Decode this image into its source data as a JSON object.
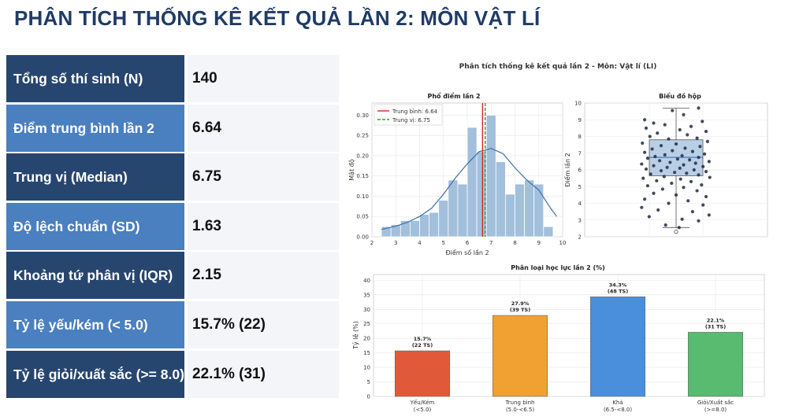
{
  "title": "PHÂN TÍCH THỐNG KÊ KẾT QUẢ LẦN 2: MÔN VẬT LÍ",
  "stats": [
    {
      "label": "Tổng số thí sinh (N)",
      "value": "140"
    },
    {
      "label": "Điểm trung bình lần 2",
      "value": "6.64"
    },
    {
      "label": "Trung vị (Median)",
      "value": "6.75"
    },
    {
      "label": "Độ lệch chuẩn (SD)",
      "value": "1.63"
    },
    {
      "label": "Khoảng tứ phân vị (IQR)",
      "value": "2.15"
    },
    {
      "label": "Tỷ lệ yếu/kém (< 5.0)",
      "value": "15.7% (22)"
    },
    {
      "label": "Tỷ lệ giỏi/xuất sắc (>= 8.0)",
      "value": "22.1% (31)"
    }
  ],
  "figure_title": "Phân tích thống kê kết quả lần 2 - Môn: Vật lí (LI)",
  "chart_data": [
    {
      "type": "bar",
      "title": "Phổ điểm lần 2",
      "xlabel": "Điểm số lần 2",
      "ylabel": "Mật độ",
      "bin_edges": [
        2.4,
        2.8,
        3.2,
        3.6,
        4.0,
        4.4,
        4.8,
        5.2,
        5.6,
        6.0,
        6.4,
        6.8,
        7.2,
        7.6,
        8.0,
        8.4,
        8.8,
        9.2,
        9.6
      ],
      "values": [
        0.025,
        0.03,
        0.04,
        0.04,
        0.055,
        0.06,
        0.09,
        0.14,
        0.13,
        0.27,
        0.21,
        0.3,
        0.185,
        0.105,
        0.13,
        0.14,
        0.13,
        0.025
      ],
      "kde": {
        "x": [
          2.4,
          3.0,
          3.5,
          4.0,
          4.5,
          5.0,
          5.5,
          6.0,
          6.5,
          7.0,
          7.5,
          8.0,
          8.5,
          9.0,
          9.5,
          9.75
        ],
        "y": [
          0.018,
          0.026,
          0.036,
          0.05,
          0.07,
          0.105,
          0.145,
          0.18,
          0.21,
          0.218,
          0.205,
          0.17,
          0.14,
          0.115,
          0.07,
          0.05
        ]
      },
      "mean": 6.64,
      "median": 6.75,
      "legend": [
        "Trung bình: 6.64",
        "Trung vị: 6.75"
      ],
      "xlim": [
        2,
        10
      ],
      "ylim": [
        0,
        0.33
      ],
      "xticks": [
        2,
        3,
        4,
        5,
        6,
        7,
        8,
        9,
        10
      ],
      "yticks": [
        "0.00",
        "0.05",
        "0.10",
        "0.15",
        "0.20",
        "0.25",
        "0.30"
      ],
      "colors": {
        "bar": "#a2bfdc",
        "kde": "#3a70ad",
        "mean": "#d62728",
        "median": "#2ca02c"
      }
    },
    {
      "type": "box",
      "title": "Biểu đồ hộp",
      "ylabel": "Điểm lần 2",
      "ylim": [
        2,
        10
      ],
      "yticks": [
        2,
        3,
        4,
        5,
        6,
        7,
        8,
        9,
        10
      ],
      "q1": 5.65,
      "median": 6.75,
      "q3": 7.8,
      "whisker_low": 2.55,
      "whisker_high": 9.7,
      "outliers": [
        2.3
      ],
      "points": [
        {
          "x": -0.42,
          "y": 9.0
        },
        {
          "x": 0.3,
          "y": 9.7
        },
        {
          "x": -0.05,
          "y": 9.55
        },
        {
          "x": 0.1,
          "y": 9.3
        },
        {
          "x": -0.3,
          "y": 8.8
        },
        {
          "x": 0.35,
          "y": 8.9
        },
        {
          "x": -0.15,
          "y": 8.7
        },
        {
          "x": 0.2,
          "y": 8.6
        },
        {
          "x": -0.4,
          "y": 8.5
        },
        {
          "x": 0.05,
          "y": 8.4
        },
        {
          "x": 0.4,
          "y": 8.3
        },
        {
          "x": -0.25,
          "y": 8.2
        },
        {
          "x": 0.15,
          "y": 8.1
        },
        {
          "x": -0.35,
          "y": 8.0
        },
        {
          "x": 0.28,
          "y": 7.9
        },
        {
          "x": -0.1,
          "y": 7.85
        },
        {
          "x": 0.42,
          "y": 7.7
        },
        {
          "x": -0.45,
          "y": 7.6
        },
        {
          "x": 0.0,
          "y": 7.55
        },
        {
          "x": -0.2,
          "y": 7.45
        },
        {
          "x": 0.32,
          "y": 7.4
        },
        {
          "x": 0.12,
          "y": 7.3
        },
        {
          "x": -0.32,
          "y": 7.25
        },
        {
          "x": -0.05,
          "y": 7.15
        },
        {
          "x": 0.22,
          "y": 7.1
        },
        {
          "x": -0.42,
          "y": 7.05
        },
        {
          "x": 0.38,
          "y": 6.95
        },
        {
          "x": -0.15,
          "y": 6.9
        },
        {
          "x": 0.08,
          "y": 6.85
        },
        {
          "x": -0.28,
          "y": 6.8
        },
        {
          "x": 0.3,
          "y": 6.75
        },
        {
          "x": -0.38,
          "y": 6.7
        },
        {
          "x": 0.02,
          "y": 6.65
        },
        {
          "x": 0.18,
          "y": 6.6
        },
        {
          "x": -0.22,
          "y": 6.55
        },
        {
          "x": 0.44,
          "y": 6.5
        },
        {
          "x": -0.08,
          "y": 6.45
        },
        {
          "x": 0.26,
          "y": 6.4
        },
        {
          "x": -0.46,
          "y": 6.35
        },
        {
          "x": 0.1,
          "y": 6.3
        },
        {
          "x": -0.3,
          "y": 6.25
        },
        {
          "x": 0.36,
          "y": 6.2
        },
        {
          "x": -0.12,
          "y": 6.15
        },
        {
          "x": 0.05,
          "y": 6.1
        },
        {
          "x": -0.4,
          "y": 6.05
        },
        {
          "x": 0.24,
          "y": 6.0
        },
        {
          "x": -0.2,
          "y": 5.95
        },
        {
          "x": 0.4,
          "y": 5.9
        },
        {
          "x": -0.02,
          "y": 5.85
        },
        {
          "x": 0.14,
          "y": 5.8
        },
        {
          "x": -0.34,
          "y": 5.75
        },
        {
          "x": 0.3,
          "y": 5.7
        },
        {
          "x": -0.16,
          "y": 5.6
        },
        {
          "x": 0.45,
          "y": 5.55
        },
        {
          "x": -0.44,
          "y": 5.5
        },
        {
          "x": 0.06,
          "y": 5.45
        },
        {
          "x": -0.26,
          "y": 5.35
        },
        {
          "x": 0.2,
          "y": 5.3
        },
        {
          "x": -0.06,
          "y": 5.2
        },
        {
          "x": 0.34,
          "y": 5.1
        },
        {
          "x": -0.38,
          "y": 5.05
        },
        {
          "x": 0.1,
          "y": 4.95
        },
        {
          "x": -0.18,
          "y": 4.85
        },
        {
          "x": 0.28,
          "y": 4.75
        },
        {
          "x": -0.3,
          "y": 4.6
        },
        {
          "x": 0.0,
          "y": 4.5
        },
        {
          "x": 0.4,
          "y": 4.4
        },
        {
          "x": -0.42,
          "y": 4.25
        },
        {
          "x": 0.16,
          "y": 4.15
        },
        {
          "x": -0.1,
          "y": 4.0
        },
        {
          "x": 0.36,
          "y": 3.9
        },
        {
          "x": -0.46,
          "y": 3.75
        },
        {
          "x": -0.24,
          "y": 3.6
        },
        {
          "x": 0.22,
          "y": 3.5
        },
        {
          "x": 0.44,
          "y": 3.3
        },
        {
          "x": -0.36,
          "y": 3.2
        },
        {
          "x": 0.08,
          "y": 3.05
        },
        {
          "x": 0.3,
          "y": 2.95
        },
        {
          "x": -0.14,
          "y": 2.7
        },
        {
          "x": 0.04,
          "y": 2.55
        }
      ],
      "colors": {
        "box": "#a2bfdc",
        "point": "#1f2a44",
        "median": "#3a70ad"
      }
    },
    {
      "type": "bar",
      "title": "Phân loại học lực lần 2 (%)",
      "ylabel": "Tỷ lệ (%)",
      "categories": [
        [
          "Yếu/Kém",
          "(<5.0)"
        ],
        [
          "Trung bình",
          "(5.0-<6.5)"
        ],
        [
          "Khá",
          "(6.5-<8.0)"
        ],
        [
          "Giỏi/Xuất sắc",
          "(>=8.0)"
        ]
      ],
      "values": [
        15.7,
        27.9,
        34.3,
        22.1
      ],
      "data_labels": [
        [
          "15.7%",
          "(22 TS)"
        ],
        [
          "27.9%",
          "(39 TS)"
        ],
        [
          "34.3%",
          "(48 TS)"
        ],
        [
          "22.1%",
          "(31 TS)"
        ]
      ],
      "ylim": [
        0,
        42
      ],
      "yticks": [
        0,
        5,
        10,
        15,
        20,
        25,
        30,
        35,
        40
      ],
      "colors": [
        "#e05a3a",
        "#f0a132",
        "#4a8fdc",
        "#58bb6f"
      ]
    }
  ]
}
